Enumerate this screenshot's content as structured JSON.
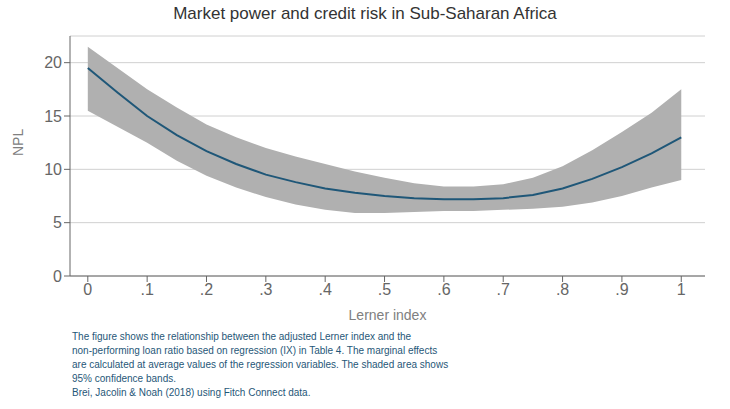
{
  "chart_data": {
    "type": "line",
    "title": "Market power and credit risk in Sub-Saharan Africa",
    "xlabel": "Lerner index",
    "ylabel": "NPL",
    "annotation": "The figure shows the relationship between the adjusted Lerner index and the\nnon-performing loan ratio based on regression (IX) in Table 4. The marginal effects\nare calculated at average values of the regression variables. The shaded area shows\n95% confidence bands.\nBrei, Jacolin & Noah (2018) using Fitch Connect data.",
    "annotation_color": "#1f5778",
    "x": [
      0.0,
      0.05,
      0.1,
      0.15,
      0.2,
      0.25,
      0.3,
      0.35,
      0.4,
      0.45,
      0.5,
      0.55,
      0.6,
      0.65,
      0.7,
      0.75,
      0.8,
      0.85,
      0.9,
      0.95,
      1.0
    ],
    "values": [
      19.5,
      17.2,
      15.0,
      13.2,
      11.7,
      10.5,
      9.5,
      8.8,
      8.2,
      7.8,
      7.5,
      7.3,
      7.2,
      7.2,
      7.3,
      7.6,
      8.2,
      9.1,
      10.2,
      11.5,
      13.0
    ],
    "upper": [
      21.5,
      19.5,
      17.5,
      15.8,
      14.2,
      13.0,
      12.0,
      11.2,
      10.5,
      9.8,
      9.2,
      8.7,
      8.4,
      8.4,
      8.6,
      9.2,
      10.3,
      11.8,
      13.5,
      15.3,
      17.5
    ],
    "lower": [
      15.5,
      14.0,
      12.5,
      10.8,
      9.4,
      8.3,
      7.4,
      6.7,
      6.2,
      5.9,
      5.9,
      6.0,
      6.1,
      6.1,
      6.2,
      6.3,
      6.5,
      6.9,
      7.5,
      8.3,
      9.0
    ],
    "color": "#1f5778",
    "band_color": "#b0b0b0",
    "xlim": [
      -0.03,
      1.04
    ],
    "xticks": [
      0,
      {
        "value": 0.1,
        "label": ".1"
      },
      {
        "value": 0.2,
        "label": ".2"
      },
      {
        "value": 0.3,
        "label": ".3"
      },
      {
        "value": 0.4,
        "label": ".4"
      },
      {
        "value": 0.5,
        "label": ".5"
      },
      {
        "value": 0.6,
        "label": ".6"
      },
      {
        "value": 0.7,
        "label": ".7"
      },
      {
        "value": 0.8,
        "label": ".8"
      },
      {
        "value": 0.9,
        "label": ".9"
      },
      1
    ],
    "ylim": [
      0,
      22.5
    ],
    "yticks": [
      0,
      5,
      10,
      15,
      20
    ],
    "grid": "y"
  }
}
